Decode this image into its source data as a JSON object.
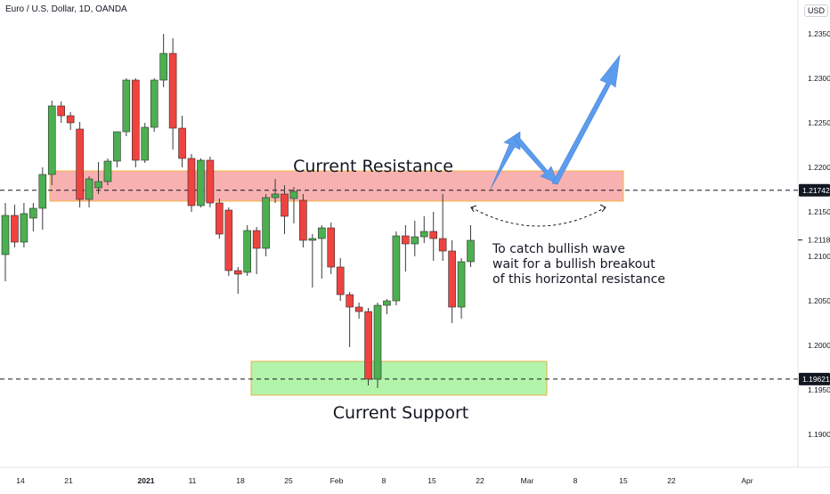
{
  "header": {
    "title": "Euro / U.S. Dollar, 1D, OANDA",
    "currency": "USD"
  },
  "colors": {
    "up": "#4caf50",
    "down": "#f0433f",
    "resistance_zone": "#f7a3a3",
    "resistance_border": "#f5b642",
    "support_zone": "#a5f29a",
    "support_border": "#e8b04a",
    "arrow": "#5b9cee",
    "axis_text": "#131722"
  },
  "annotations": {
    "resistance_label": "Current Resistance",
    "support_label": "Current Support",
    "note_lines": [
      "To catch bullish wave",
      "wait for a bullish breakout",
      "of this horizontal resistance"
    ]
  },
  "chart_data": {
    "type": "candlestick",
    "title": "Euro / U.S. Dollar, 1D, OANDA",
    "ylim": [
      1.185,
      1.2375
    ],
    "y_ticks": [
      "1.23500",
      "1.23000",
      "1.22500",
      "1.22000",
      "1.21500",
      "1.21000",
      "1.20500",
      "1.20000",
      "1.19500",
      "1.19000"
    ],
    "x_ticks": [
      "14",
      "21",
      "2021",
      "11",
      "18",
      "25",
      "Feb",
      "8",
      "15",
      "22",
      "Mar",
      "8",
      "15",
      "22",
      "Apr"
    ],
    "price_labels": [
      {
        "value": "1.21742",
        "boxed": true
      },
      {
        "value": "1.21184",
        "boxed": false
      },
      {
        "value": "1.19621",
        "boxed": true
      }
    ],
    "horizontal_lines": [
      1.21742,
      1.19621
    ],
    "zones": [
      {
        "name": "resistance",
        "low": 1.2162,
        "high": 1.2196
      },
      {
        "name": "support",
        "low": 1.1944,
        "high": 1.1982
      }
    ],
    "candles": [
      {
        "o": 1.2102,
        "h": 1.216,
        "l": 1.2072,
        "c": 1.2146
      },
      {
        "o": 1.2146,
        "h": 1.2158,
        "l": 1.211,
        "c": 1.2116
      },
      {
        "o": 1.2116,
        "h": 1.216,
        "l": 1.211,
        "c": 1.2148
      },
      {
        "o": 1.2143,
        "h": 1.216,
        "l": 1.2128,
        "c": 1.2154
      },
      {
        "o": 1.2154,
        "h": 1.22,
        "l": 1.213,
        "c": 1.2192
      },
      {
        "o": 1.2192,
        "h": 1.2275,
        "l": 1.218,
        "c": 1.2269
      },
      {
        "o": 1.2269,
        "h": 1.2274,
        "l": 1.225,
        "c": 1.2258
      },
      {
        "o": 1.2258,
        "h": 1.2262,
        "l": 1.2242,
        "c": 1.225
      },
      {
        "o": 1.2243,
        "h": 1.2251,
        "l": 1.2155,
        "c": 1.2164
      },
      {
        "o": 1.2164,
        "h": 1.219,
        "l": 1.2155,
        "c": 1.2187
      },
      {
        "o": 1.2177,
        "h": 1.2206,
        "l": 1.217,
        "c": 1.2184
      },
      {
        "o": 1.2184,
        "h": 1.221,
        "l": 1.218,
        "c": 1.2207
      },
      {
        "o": 1.2207,
        "h": 1.224,
        "l": 1.22,
        "c": 1.224
      },
      {
        "o": 1.224,
        "h": 1.23,
        "l": 1.2235,
        "c": 1.2298
      },
      {
        "o": 1.2298,
        "h": 1.23,
        "l": 1.22,
        "c": 1.2208
      },
      {
        "o": 1.2208,
        "h": 1.225,
        "l": 1.2205,
        "c": 1.2245
      },
      {
        "o": 1.2245,
        "h": 1.23,
        "l": 1.224,
        "c": 1.2298
      },
      {
        "o": 1.2298,
        "h": 1.235,
        "l": 1.229,
        "c": 1.2328
      },
      {
        "o": 1.2328,
        "h": 1.2345,
        "l": 1.222,
        "c": 1.2244
      },
      {
        "o": 1.2244,
        "h": 1.2258,
        "l": 1.22,
        "c": 1.221
      },
      {
        "o": 1.221,
        "h": 1.2215,
        "l": 1.215,
        "c": 1.2157
      },
      {
        "o": 1.2157,
        "h": 1.221,
        "l": 1.2155,
        "c": 1.2208
      },
      {
        "o": 1.2208,
        "h": 1.2212,
        "l": 1.2155,
        "c": 1.216
      },
      {
        "o": 1.216,
        "h": 1.2165,
        "l": 1.212,
        "c": 1.2125
      },
      {
        "o": 1.2152,
        "h": 1.2155,
        "l": 1.2078,
        "c": 1.2084
      },
      {
        "o": 1.2084,
        "h": 1.2088,
        "l": 1.2058,
        "c": 1.208
      },
      {
        "o": 1.2082,
        "h": 1.2135,
        "l": 1.2078,
        "c": 1.2129
      },
      {
        "o": 1.2129,
        "h": 1.2133,
        "l": 1.208,
        "c": 1.2109
      },
      {
        "o": 1.2109,
        "h": 1.217,
        "l": 1.21,
        "c": 1.2166
      },
      {
        "o": 1.2166,
        "h": 1.2187,
        "l": 1.216,
        "c": 1.217
      },
      {
        "o": 1.217,
        "h": 1.218,
        "l": 1.2125,
        "c": 1.2145
      },
      {
        "o": 1.2165,
        "h": 1.2178,
        "l": 1.2137,
        "c": 1.2173
      },
      {
        "o": 1.2163,
        "h": 1.217,
        "l": 1.211,
        "c": 1.2118
      },
      {
        "o": 1.2118,
        "h": 1.2125,
        "l": 1.2065,
        "c": 1.212
      },
      {
        "o": 1.212,
        "h": 1.2135,
        "l": 1.2075,
        "c": 1.2132
      },
      {
        "o": 1.2132,
        "h": 1.2138,
        "l": 1.208,
        "c": 1.2088
      },
      {
        "o": 1.2088,
        "h": 1.2098,
        "l": 1.205,
        "c": 1.2057
      },
      {
        "o": 1.2057,
        "h": 1.206,
        "l": 1.1998,
        "c": 1.2043
      },
      {
        "o": 1.2043,
        "h": 1.2048,
        "l": 1.203,
        "c": 1.2038
      },
      {
        "o": 1.2038,
        "h": 1.2042,
        "l": 1.1955,
        "c": 1.1962
      },
      {
        "o": 1.1962,
        "h": 1.2048,
        "l": 1.1952,
        "c": 1.2045
      },
      {
        "o": 1.2045,
        "h": 1.2052,
        "l": 1.2035,
        "c": 1.205
      },
      {
        "o": 1.205,
        "h": 1.2128,
        "l": 1.2045,
        "c": 1.2123
      },
      {
        "o": 1.2123,
        "h": 1.2135,
        "l": 1.2083,
        "c": 1.2114
      },
      {
        "o": 1.2114,
        "h": 1.214,
        "l": 1.21,
        "c": 1.2122
      },
      {
        "o": 1.2122,
        "h": 1.2145,
        "l": 1.2115,
        "c": 1.2128
      },
      {
        "o": 1.2128,
        "h": 1.215,
        "l": 1.2095,
        "c": 1.212
      },
      {
        "o": 1.212,
        "h": 1.217,
        "l": 1.2095,
        "c": 1.2106
      },
      {
        "o": 1.2106,
        "h": 1.2118,
        "l": 1.2025,
        "c": 1.2043
      },
      {
        "o": 1.2043,
        "h": 1.2098,
        "l": 1.203,
        "c": 1.2094
      },
      {
        "o": 1.2094,
        "h": 1.2135,
        "l": 1.2088,
        "c": 1.2118
      }
    ]
  }
}
